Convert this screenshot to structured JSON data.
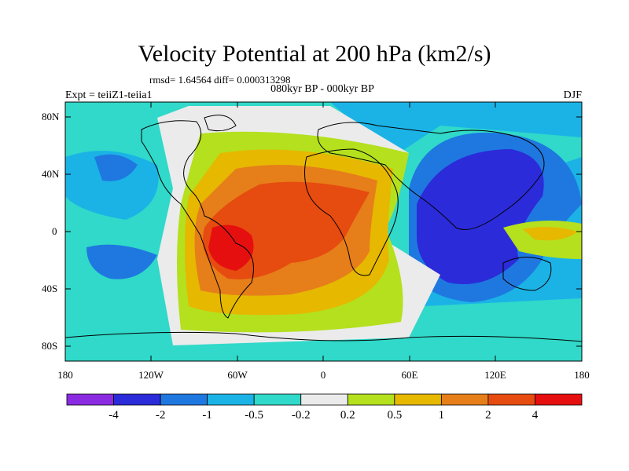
{
  "title": "Velocity Potential at 200 hPa (km2/s)",
  "stats": "rmsd= 1.64564 diff= 0.000313298",
  "subtitle": "080kyr BP - 000kyr BP",
  "left_label": "Expt = teiiZ1-teiia1",
  "right_label": "DJF",
  "lat_ticks": [
    "80N",
    "40N",
    "0",
    "40S",
    "80S"
  ],
  "lon_ticks": [
    "180",
    "120W",
    "60W",
    "0",
    "60E",
    "120E",
    "180"
  ],
  "colorbar": {
    "labels": [
      "-4",
      "-2",
      "-1",
      "-0.5",
      "-0.2",
      "0.2",
      "0.5",
      "1",
      "2",
      "4"
    ],
    "colors": [
      "#8a2be2",
      "#2b2bd9",
      "#1e78e0",
      "#1bb3e6",
      "#30d9c9",
      "#ebebeb",
      "#b4e01e",
      "#e6b800",
      "#e67e19",
      "#e64b0f",
      "#e60f0f"
    ]
  },
  "chart_data": {
    "type": "heatmap",
    "xlabel": "",
    "ylabel": "",
    "x_ticks": [
      "180",
      "120W",
      "60W",
      "0",
      "60E",
      "120E",
      "180"
    ],
    "y_ticks": [
      "80N",
      "40N",
      "0",
      "40S",
      "80S"
    ],
    "levels": [
      -4,
      -2,
      -1,
      -0.5,
      -0.2,
      0.2,
      0.5,
      1,
      2,
      4
    ]
  }
}
